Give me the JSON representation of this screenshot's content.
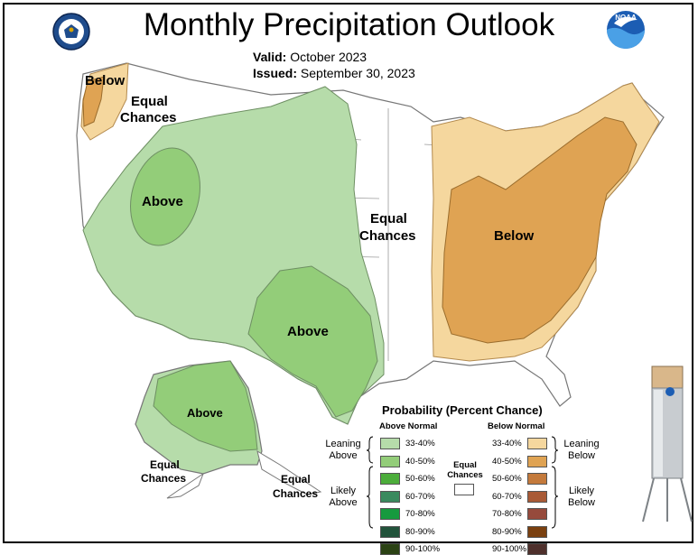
{
  "header": {
    "title": "Monthly Precipitation Outlook",
    "valid_label": "Valid:",
    "valid_value": "October 2023",
    "issued_label": "Issued:",
    "issued_value": "September 30, 2023"
  },
  "logos": {
    "left": "Department of Commerce seal",
    "right": "NOAA",
    "right_text": "NOAA"
  },
  "map": {
    "labels": {
      "nw_below": "Below",
      "nw_equal_1": "Equal",
      "nw_equal_2": "Chances",
      "great_basin_above": "Above",
      "center_equal_1": "Equal",
      "center_equal_2": "Chances",
      "east_below": "Below",
      "texas_above": "Above",
      "alaska_above": "Above",
      "alaska_equal_1": "Equal",
      "alaska_equal_2": "Chances",
      "aleutian_equal_1": "Equal",
      "aleutian_equal_2": "Chances"
    },
    "colors": {
      "above_33_40": "#b6dcaa",
      "above_40_50": "#93cd79",
      "below_33_40": "#f5d79e",
      "below_40_50": "#dfa353",
      "land": "#ffffff",
      "outline": "#7a7a7a"
    }
  },
  "legend": {
    "title": "Probability (Percent Chance)",
    "above_header": "Above Normal",
    "below_header": "Below Normal",
    "equal_label_1": "Equal",
    "equal_label_2": "Chances",
    "leaning_above_1": "Leaning",
    "leaning_above_2": "Above",
    "likely_above_1": "Likely",
    "likely_above_2": "Above",
    "leaning_below_1": "Leaning",
    "leaning_below_2": "Below",
    "likely_below_1": "Likely",
    "likely_below_2": "Below",
    "above_bins": [
      {
        "label": "33-40%",
        "color": "#b6dcaa"
      },
      {
        "label": "40-50%",
        "color": "#93cd79"
      },
      {
        "label": "50-60%",
        "color": "#4cad3b"
      },
      {
        "label": "60-70%",
        "color": "#3a8a5e"
      },
      {
        "label": "70-80%",
        "color": "#169a3e"
      },
      {
        "label": "80-90%",
        "color": "#22533b"
      },
      {
        "label": "90-100%",
        "color": "#2b4214"
      }
    ],
    "below_bins": [
      {
        "label": "33-40%",
        "color": "#f5d79e"
      },
      {
        "label": "40-50%",
        "color": "#dfa353"
      },
      {
        "label": "50-60%",
        "color": "#c47a3c"
      },
      {
        "label": "60-70%",
        "color": "#a95a36"
      },
      {
        "label": "70-80%",
        "color": "#964a3c"
      },
      {
        "label": "80-90%",
        "color": "#7a4010"
      },
      {
        "label": "90-100%",
        "color": "#4e302c"
      }
    ]
  },
  "gauge": {
    "name": "rain gauge"
  }
}
